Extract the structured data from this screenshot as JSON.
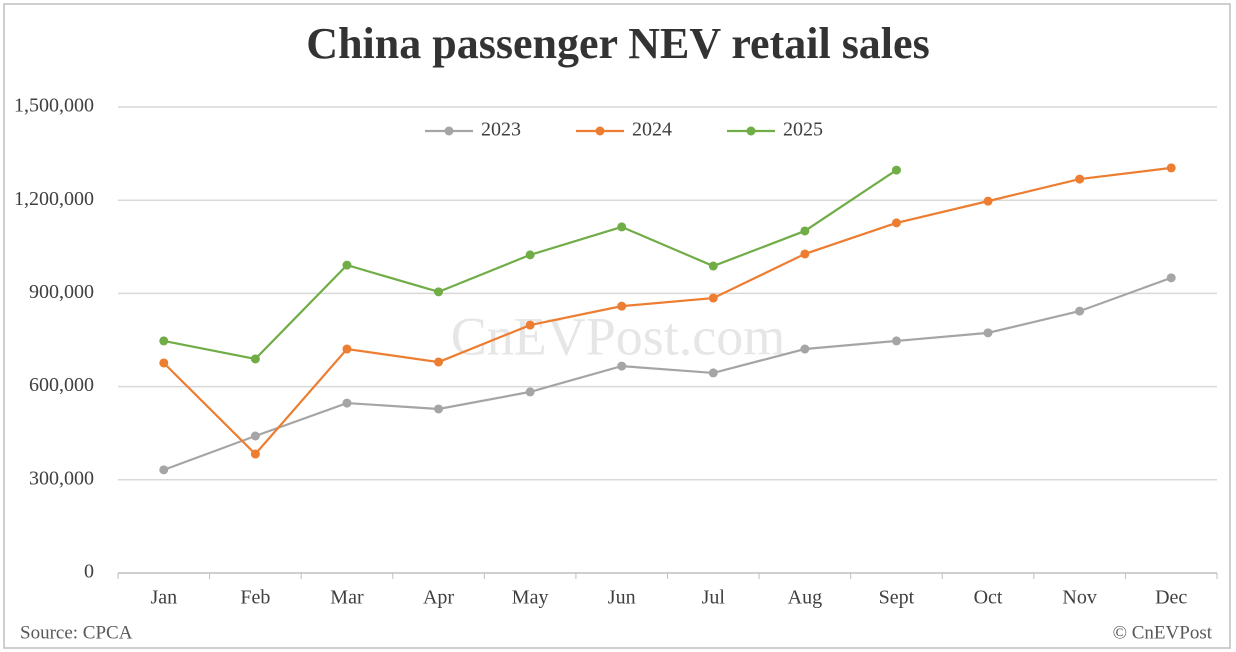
{
  "chart_data": {
    "type": "line",
    "title": "China passenger NEV retail sales",
    "categories": [
      "Jan",
      "Feb",
      "Mar",
      "Apr",
      "May",
      "Jun",
      "Jul",
      "Aug",
      "Sept",
      "Oct",
      "Nov",
      "Dec"
    ],
    "series": [
      {
        "name": "2023",
        "color": "#a5a5a5",
        "values": [
          332000,
          441000,
          547000,
          528000,
          583000,
          666000,
          644000,
          721000,
          747000,
          773000,
          843000,
          950000
        ]
      },
      {
        "name": "2024",
        "color": "#ed7d31",
        "values": [
          676000,
          383000,
          721000,
          679000,
          798000,
          859000,
          885000,
          1027000,
          1127000,
          1197000,
          1268000,
          1304000
        ]
      },
      {
        "name": "2025",
        "color": "#70ad47",
        "values": [
          747000,
          689000,
          991000,
          905000,
          1024000,
          1114000,
          988000,
          1101000,
          1297000,
          null,
          null,
          null
        ]
      }
    ],
    "ylim": [
      0,
      1500000
    ],
    "yticks": [
      0,
      {
        "value": 300000,
        "label": "300,000"
      },
      {
        "value": 600000,
        "label": "600,000"
      },
      {
        "value": 900000,
        "label": "900,000"
      },
      {
        "value": 1200000,
        "label": "1,200,000"
      },
      {
        "value": 1500000,
        "label": "1,500,000"
      }
    ],
    "grid": true,
    "legend": "top",
    "source": "Source: CPCA",
    "credit": "© CnEVPost",
    "watermark": "CnEVPost.com"
  }
}
